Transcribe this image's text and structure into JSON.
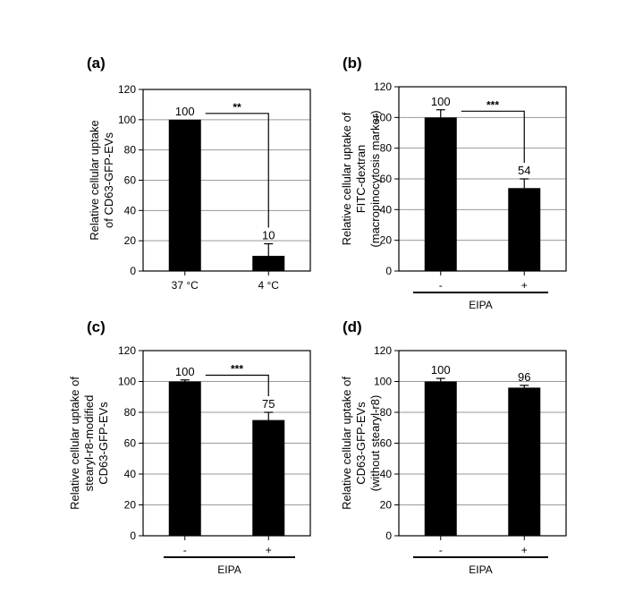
{
  "chart_data": [
    {
      "type": "bar",
      "panel": "(a)",
      "categories": [
        "37 °C",
        "4 °C"
      ],
      "values": [
        100,
        10
      ],
      "errors": [
        0,
        8
      ],
      "data_labels": [
        "100",
        "10"
      ],
      "ylabel": [
        "Relative cellular uptake",
        "of CD63-GFP-EVs"
      ],
      "ylim": [
        0,
        120
      ],
      "yticks": [
        "0",
        "20",
        "40",
        "60",
        "80",
        "100",
        "120"
      ],
      "grid": true,
      "significance": "**",
      "group_label": "",
      "bar_color": "#000000"
    },
    {
      "type": "bar",
      "panel": "(b)",
      "categories": [
        "-",
        "+"
      ],
      "values": [
        100,
        54
      ],
      "errors": [
        5,
        6
      ],
      "data_labels": [
        "100",
        "54"
      ],
      "ylabel": [
        "Relative cellular uptake of",
        "FITC-dextran",
        "(macropinocytosis marker)"
      ],
      "ylim": [
        0,
        120
      ],
      "yticks": [
        "0",
        "20",
        "40",
        "60",
        "80",
        "100",
        "120"
      ],
      "grid": true,
      "significance": "***",
      "group_label": "EIPA",
      "bar_color": "#000000"
    },
    {
      "type": "bar",
      "panel": "(c)",
      "categories": [
        "-",
        "+"
      ],
      "values": [
        100,
        75
      ],
      "errors": [
        1,
        5
      ],
      "data_labels": [
        "100",
        "75"
      ],
      "ylabel": [
        "Relative cellular uptake of",
        "stearyl-r8-modified",
        "CD63-GFP-EVs"
      ],
      "ylim": [
        0,
        120
      ],
      "yticks": [
        "0",
        "20",
        "40",
        "60",
        "80",
        "100",
        "120"
      ],
      "grid": true,
      "significance": "***",
      "group_label": "EIPA",
      "bar_color": "#000000"
    },
    {
      "type": "bar",
      "panel": "(d)",
      "categories": [
        "-",
        "+"
      ],
      "values": [
        100,
        96
      ],
      "errors": [
        2,
        1.5
      ],
      "data_labels": [
        "100",
        "96"
      ],
      "ylabel": [
        "Relative cellular uptake of",
        "CD63-GFP-EVs",
        "(without stearyl-r8)"
      ],
      "ylim": [
        0,
        120
      ],
      "yticks": [
        "0",
        "20",
        "40",
        "60",
        "80",
        "100",
        "120"
      ],
      "grid": true,
      "significance": "",
      "group_label": "EIPA",
      "bar_color": "#000000"
    }
  ]
}
